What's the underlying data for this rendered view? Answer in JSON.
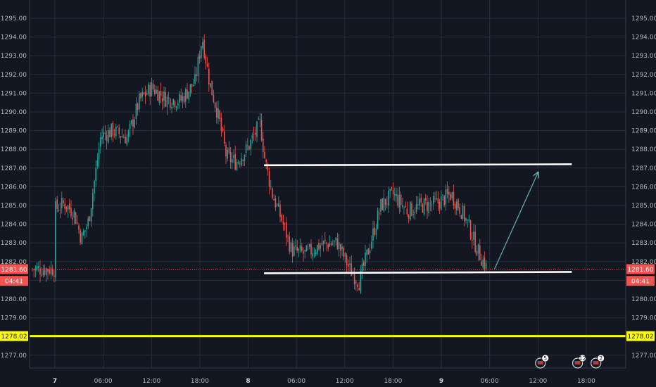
{
  "chart_data": {
    "type": "candlestick",
    "y_axis": {
      "ticks": [
        "1295.00",
        "1294.00",
        "1293.00",
        "1292.00",
        "1291.00",
        "1290.00",
        "1289.00",
        "1288.00",
        "1287.00",
        "1286.00",
        "1285.00",
        "1284.00",
        "1283.00",
        "1282.00",
        "1280.00",
        "1279.00",
        "1277.00"
      ],
      "range": [
        1276.4,
        1296.0
      ]
    },
    "x_axis": {
      "ticks": [
        "7",
        "06:00",
        "12:00",
        "18:00",
        "8",
        "06:00",
        "12:00",
        "18:00",
        "9",
        "06:00",
        "12:00",
        "18:00"
      ]
    },
    "price_tags": [
      {
        "label": "1281.60",
        "value": 1281.6,
        "color": "#f05350",
        "side": "both"
      },
      {
        "label": "04:41",
        "value": 1280.97,
        "color": "#f05350",
        "side": "both"
      },
      {
        "label": "1278.02",
        "value": 1278.02,
        "color": "#ffff00",
        "side": "both"
      }
    ],
    "horizontal_lines": [
      {
        "value": 1278.02,
        "color": "#ffff00",
        "style": "solid"
      },
      {
        "value": 1281.6,
        "color": "#f05350",
        "style": "dotted"
      }
    ],
    "drawn_lines": [
      {
        "from": {
          "x_tick": 4.33,
          "y": 1287.15
        },
        "to": {
          "x_tick": 10.7,
          "y": 1287.2
        },
        "color": "#ffffff"
      },
      {
        "from": {
          "x_tick": 4.33,
          "y": 1281.38
        },
        "to": {
          "x_tick": 10.7,
          "y": 1281.45
        },
        "color": "#ffffff"
      },
      {
        "from": {
          "x_tick": 9.1,
          "y": 1281.6
        },
        "to": {
          "x_tick": 10.0,
          "y": 1286.75
        },
        "color": "#5fa8a8",
        "arrow": true
      }
    ],
    "price_path": [
      [
        0.0,
        1284.8
      ],
      [
        0.2,
        1285.1
      ],
      [
        0.4,
        1284.6
      ],
      [
        0.55,
        1283.2
      ],
      [
        0.7,
        1284.2
      ],
      [
        0.8,
        1286.0
      ],
      [
        0.95,
        1288.7
      ],
      [
        1.2,
        1289.0
      ],
      [
        1.5,
        1288.6
      ],
      [
        1.75,
        1290.6
      ],
      [
        2.0,
        1291.3
      ],
      [
        2.3,
        1290.7
      ],
      [
        2.6,
        1290.6
      ],
      [
        2.9,
        1291.6
      ],
      [
        3.05,
        1294.0
      ],
      [
        3.2,
        1291.6
      ],
      [
        3.4,
        1289.6
      ],
      [
        3.55,
        1287.6
      ],
      [
        3.75,
        1287.3
      ],
      [
        4.0,
        1288.1
      ],
      [
        4.25,
        1289.4
      ],
      [
        4.35,
        1287.4
      ],
      [
        4.5,
        1285.6
      ],
      [
        4.7,
        1284.2
      ],
      [
        4.9,
        1282.6
      ],
      [
        5.2,
        1282.4
      ],
      [
        5.5,
        1282.9
      ],
      [
        5.85,
        1283.0
      ],
      [
        6.1,
        1281.6
      ],
      [
        6.3,
        1280.9
      ],
      [
        6.5,
        1282.7
      ],
      [
        6.75,
        1285.0
      ],
      [
        7.0,
        1285.6
      ],
      [
        7.3,
        1284.7
      ],
      [
        7.6,
        1285.0
      ],
      [
        7.9,
        1285.1
      ],
      [
        8.2,
        1285.6
      ],
      [
        8.4,
        1284.8
      ],
      [
        8.55,
        1284.0
      ],
      [
        8.75,
        1282.6
      ],
      [
        8.95,
        1281.6
      ]
    ],
    "badges": [
      {
        "label": "5",
        "x_tick": 10.05
      },
      {
        "label": "12",
        "x_tick": 10.82
      },
      {
        "label": "2",
        "x_tick": 11.2
      }
    ]
  }
}
